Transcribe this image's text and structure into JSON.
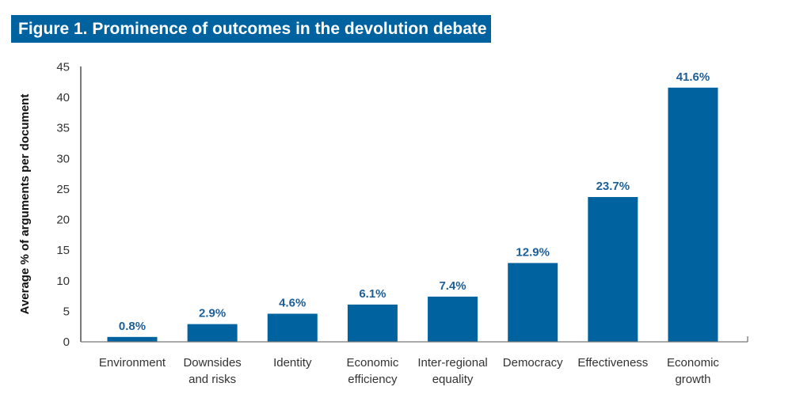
{
  "chart_data": {
    "type": "bar",
    "title": "Figure 1. Prominence of outcomes in the devolution debate",
    "ylabel": "Average % of arguments per document",
    "xlabel": "",
    "categories": [
      [
        "Environment"
      ],
      [
        "Downsides",
        "and risks"
      ],
      [
        "Identity"
      ],
      [
        "Economic",
        "efficiency"
      ],
      [
        "Inter-regional",
        "equality"
      ],
      [
        "Democracy"
      ],
      [
        "Effectiveness"
      ],
      [
        "Economic",
        "growth"
      ]
    ],
    "values": [
      0.8,
      2.9,
      4.6,
      6.1,
      7.4,
      12.9,
      23.7,
      41.6
    ],
    "data_labels": [
      "0.8%",
      "2.9%",
      "4.6%",
      "6.1%",
      "7.4%",
      "12.9%",
      "23.7%",
      "41.6%"
    ],
    "ylim": [
      0,
      45
    ],
    "yticks": [
      "0",
      "5",
      "10",
      "15",
      "20",
      "25",
      "30",
      "35",
      "40",
      "45"
    ],
    "grid": false,
    "legend": "none",
    "colors": {
      "bar": "#0063a0",
      "title_bg": "#0063a0",
      "data_label": "#1d5f97"
    }
  }
}
